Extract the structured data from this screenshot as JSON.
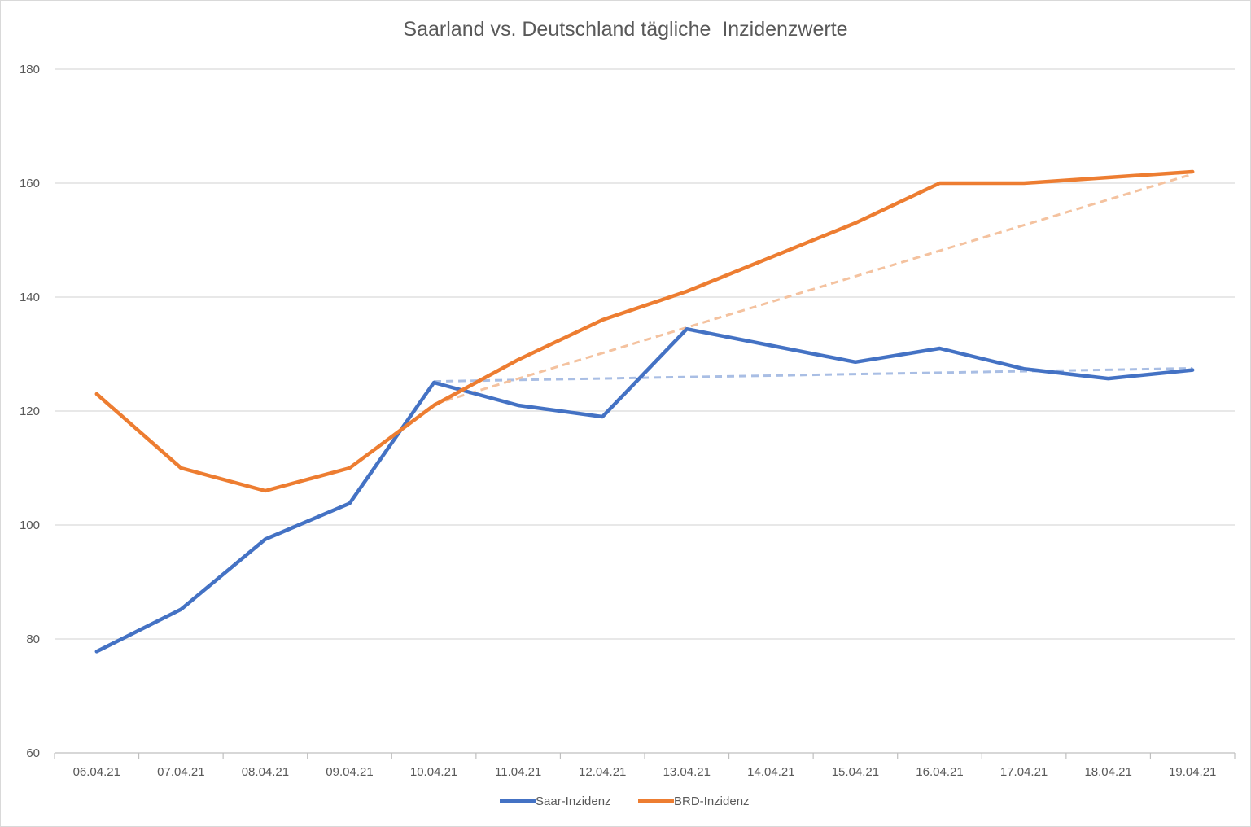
{
  "chart_data": {
    "type": "line",
    "title": "Saarland vs. Deutschland tägliche  Inzidenzwerte",
    "xlabel": "",
    "ylabel": "",
    "categories": [
      "06.04.21",
      "07.04.21",
      "08.04.21",
      "09.04.21",
      "10.04.21",
      "11.04.21",
      "12.04.21",
      "13.04.21",
      "14.04.21",
      "15.04.21",
      "16.04.21",
      "17.04.21",
      "18.04.21",
      "19.04.21"
    ],
    "ylim": [
      60,
      180
    ],
    "yticks": [
      60,
      80,
      100,
      120,
      140,
      160,
      180
    ],
    "grid": true,
    "legend_position": "bottom",
    "series": [
      {
        "name": "Saar-Inzidenz",
        "color": "#4472C4",
        "values": [
          77.8,
          85.2,
          97.5,
          103.8,
          125.0,
          121.0,
          119.0,
          134.4,
          null,
          128.6,
          131.0,
          127.4,
          125.7,
          127.2
        ]
      },
      {
        "name": "BRD-Inzidenz",
        "color": "#ED7D31",
        "values": [
          123.0,
          110.0,
          106.0,
          110.0,
          121.0,
          129.0,
          136.0,
          141.0,
          null,
          153.0,
          160.0,
          160.0,
          161.0,
          162.0
        ]
      }
    ],
    "trendlines": [
      {
        "series": "Saar-Inzidenz",
        "color": "#A9BEE4",
        "from": [
          "10.04.21",
          125.2
        ],
        "to": [
          "19.04.21",
          127.5
        ]
      },
      {
        "series": "BRD-Inzidenz",
        "color": "#F4C29F",
        "from": [
          "10.04.21",
          121.2
        ],
        "to": [
          "19.04.21",
          161.6
        ]
      }
    ]
  }
}
